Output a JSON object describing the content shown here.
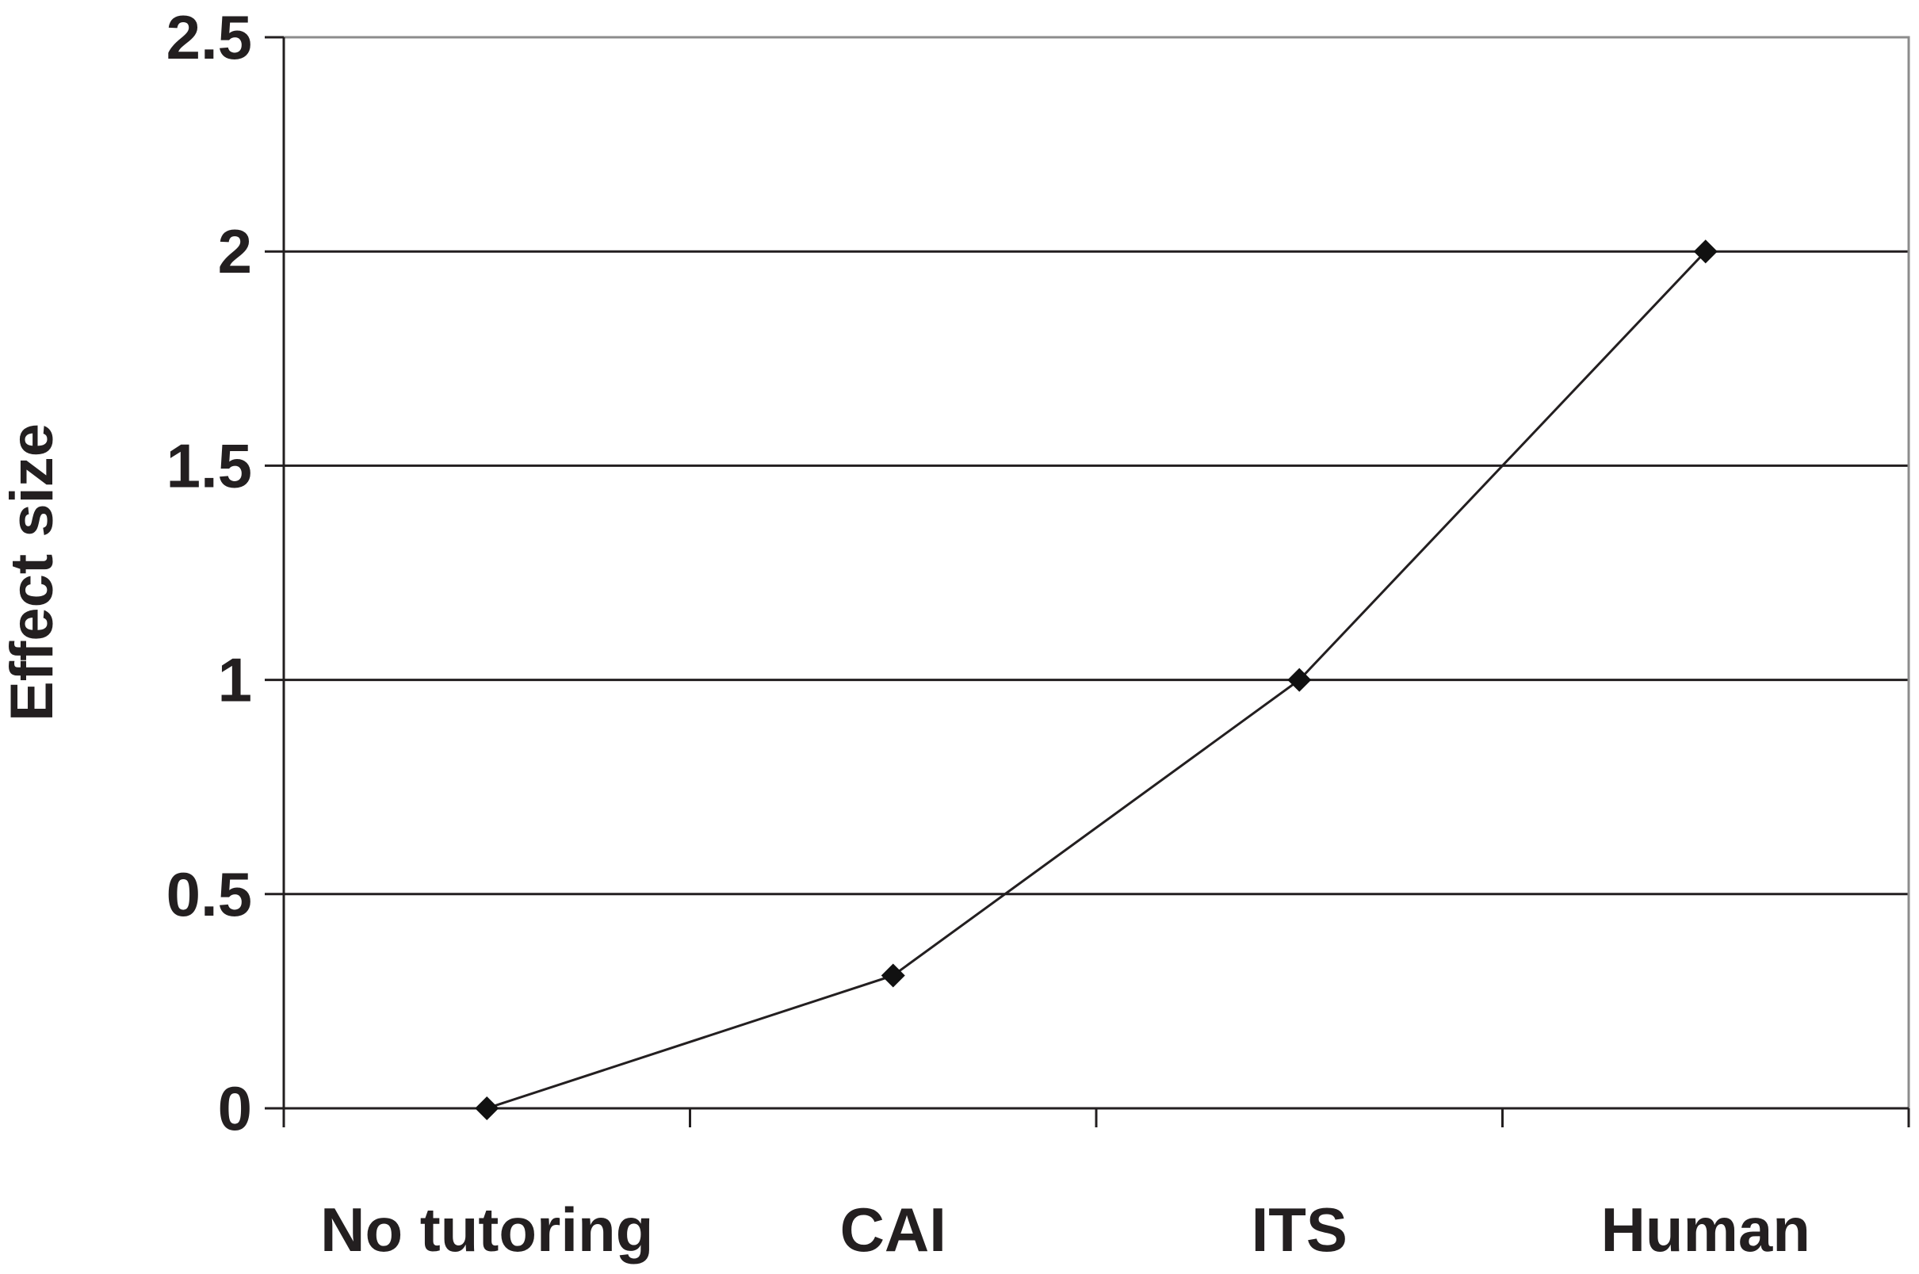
{
  "chart_data": {
    "type": "line",
    "categories": [
      "No tutoring",
      "CAI",
      "ITS",
      "Human"
    ],
    "series": [
      {
        "values": [
          0,
          0.31,
          1.0,
          2.0
        ]
      }
    ],
    "title": "",
    "xlabel": "",
    "ylabel": "Effect size",
    "ylim": [
      0,
      2.5
    ],
    "yticks": [
      "0",
      "0.5",
      "1",
      "1.5",
      "2",
      "2.5"
    ],
    "grid": true,
    "legend": "none",
    "colors": {
      "line": "#231f20",
      "marker": "#111111",
      "border": "#8c8c8c"
    },
    "marker": "diamond"
  }
}
